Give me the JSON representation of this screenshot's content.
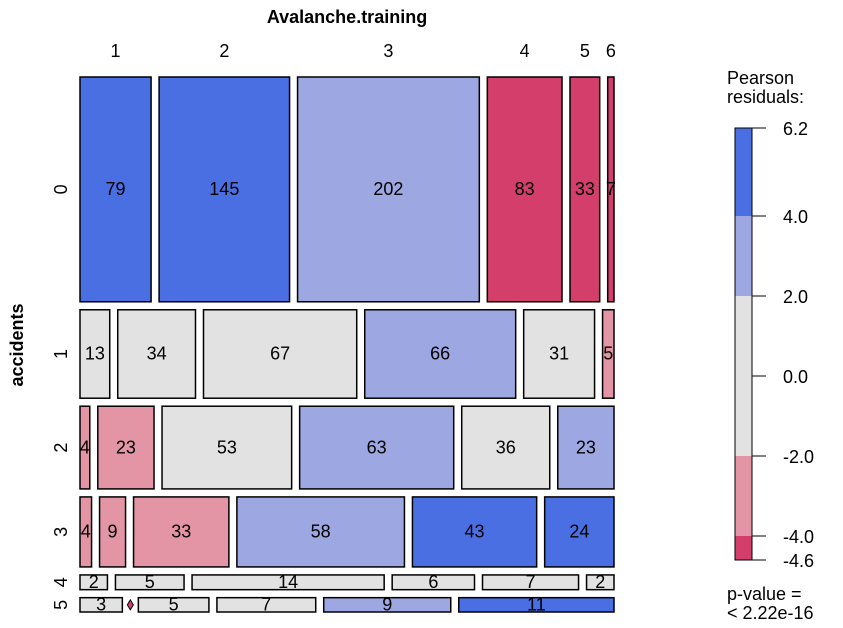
{
  "chart_data": {
    "type": "mosaic",
    "x_label": "Avalanche.training",
    "y_label": "accidents",
    "columns": [
      "1",
      "2",
      "3",
      "4",
      "5",
      "6"
    ],
    "rows": [
      "0",
      "1",
      "2",
      "3",
      "4",
      "5"
    ],
    "counts": [
      [
        79,
        145,
        202,
        83,
        33,
        7
      ],
      [
        13,
        34,
        67,
        66,
        31,
        5
      ],
      [
        4,
        23,
        53,
        63,
        36,
        23
      ],
      [
        4,
        9,
        33,
        58,
        43,
        24
      ],
      [
        2,
        5,
        14,
        6,
        7,
        2
      ],
      [
        3,
        0,
        5,
        7,
        9,
        11
      ]
    ],
    "colors": [
      [
        "#4a6fe3",
        "#4a6fe3",
        "#9da8e2",
        "#d33f6a",
        "#d33f6a",
        "#d33f6a"
      ],
      [
        "#e2e2e2",
        "#e2e2e2",
        "#e2e2e2",
        "#9da8e2",
        "#e2e2e2",
        "#e495a5"
      ],
      [
        "#e495a5",
        "#e495a5",
        "#e2e2e2",
        "#9da8e2",
        "#e2e2e2",
        "#9da8e2"
      ],
      [
        "#e495a5",
        "#e495a5",
        "#e495a5",
        "#9da8e2",
        "#4a6fe3",
        "#4a6fe3"
      ],
      [
        "#e2e2e2",
        "#e2e2e2",
        "#e2e2e2",
        "#e2e2e2",
        "#e2e2e2",
        "#e2e2e2"
      ],
      [
        "#e2e2e2",
        "#d33f6a",
        "#e2e2e2",
        "#e2e2e2",
        "#9da8e2",
        "#4a6fe3"
      ]
    ],
    "legend": {
      "title": [
        "Pearson",
        "residuals:"
      ],
      "lim": [
        -4.6,
        6.2
      ],
      "ticks": [
        -4.6,
        {
          "value": -4,
          "label": "-4.0"
        },
        {
          "value": -2,
          "label": "-2.0"
        },
        {
          "value": 0,
          "label": "0.0"
        },
        {
          "value": 2,
          "label": "2.0"
        },
        {
          "value": 4,
          "label": "4.0"
        },
        6.2
      ],
      "colors": [
        "#d33f6a",
        "#e495a5",
        "#e2e2e2",
        "#e2e2e2",
        "#9da8e2",
        "#4a6fe3"
      ]
    },
    "p_value": [
      "p-value =",
      "< 2.22e-16"
    ]
  }
}
